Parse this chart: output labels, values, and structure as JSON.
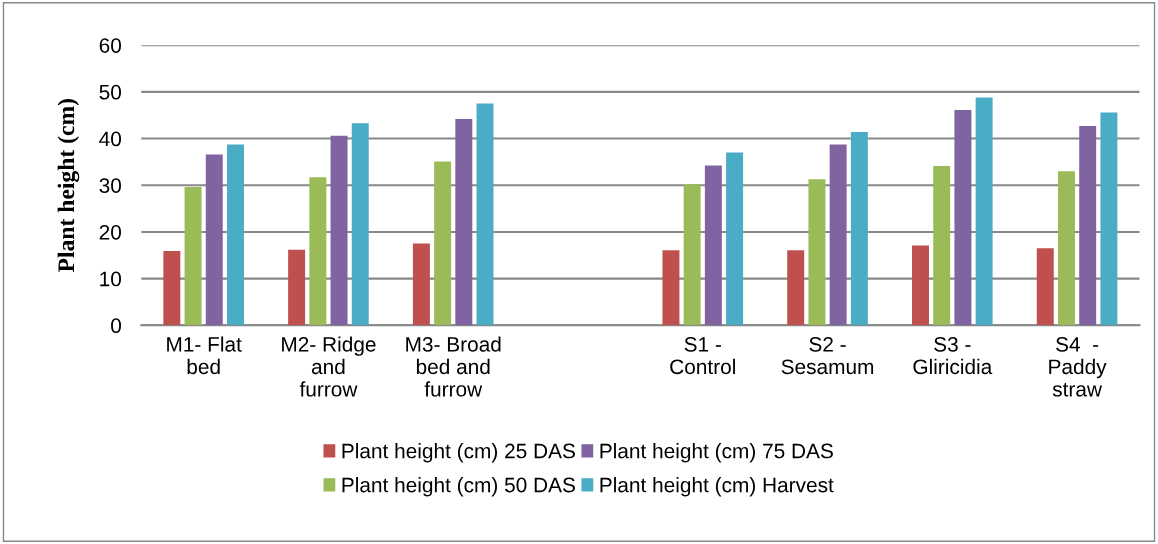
{
  "chart_data": {
    "type": "bar",
    "ylabel": "Plant height (cm)",
    "categories": [
      "M1- Flat\nbed",
      "M2- Ridge\nand\nfurrow",
      "M3- Broad\nbed and\nfurrow",
      null,
      "S1 -\nControl",
      "S2 -\nSesamum",
      "S3 -\nGliricidia",
      "S4  -\nPaddy\nstraw"
    ],
    "series": [
      {
        "name": "Plant height (cm) 25 DAS",
        "color": "#c0504d",
        "values": [
          15.9,
          16.2,
          17.5,
          null,
          16.1,
          16.1,
          17.1,
          16.5
        ]
      },
      {
        "name": "Plant height (cm) 50 DAS",
        "color": "#9bbb59",
        "values": [
          29.6,
          31.7,
          35.1,
          null,
          30.2,
          31.3,
          34.1,
          33.0
        ]
      },
      {
        "name": "Plant height (cm) 75 DAS",
        "color": "#8064a2",
        "values": [
          36.6,
          40.6,
          44.2,
          null,
          34.2,
          38.7,
          46.1,
          42.7
        ]
      },
      {
        "name": "Plant height (cm) Harvest",
        "color": "#4bacc6",
        "values": [
          38.7,
          43.3,
          47.5,
          null,
          37.0,
          41.4,
          48.8,
          45.6
        ]
      }
    ],
    "ylim": [
      0,
      60
    ],
    "yticks": [
      0,
      10,
      20,
      30,
      40,
      50,
      60
    ],
    "grid": "y",
    "legend": "bottom"
  }
}
